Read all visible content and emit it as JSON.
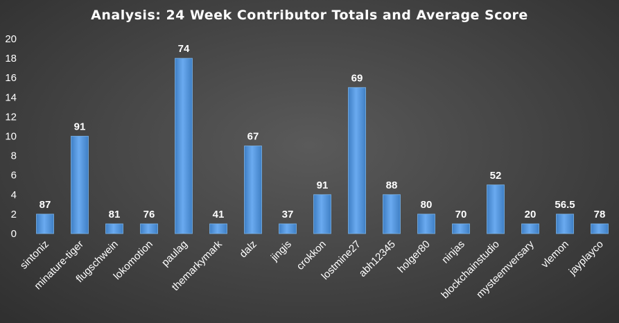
{
  "chart_data": {
    "type": "bar",
    "title": "Analysis: 24 Week Contributor Totals and Average Score",
    "xlabel": "",
    "ylabel": "",
    "ylim": [
      0,
      20
    ],
    "yticks": [
      0,
      2,
      4,
      6,
      8,
      10,
      12,
      14,
      16,
      18,
      20
    ],
    "grid": false,
    "legend": "none",
    "categories": [
      "sintoniz",
      "minature-tiger",
      "flugschwein",
      "lokomotion",
      "paulag",
      "themarkymark",
      "dalz",
      "jingis",
      "crokkon",
      "lostmine27",
      "abh12345",
      "holger80",
      "ninjas",
      "blockchainstudio",
      "mysteemversary",
      "vlemon",
      "jayplayco"
    ],
    "values": [
      2,
      10,
      1,
      1,
      18,
      1,
      9,
      1,
      4,
      15,
      4,
      2,
      1,
      5,
      1,
      2,
      1
    ],
    "data_labels": [
      "87",
      "91",
      "81",
      "76",
      "74",
      "41",
      "67",
      "37",
      "91",
      "69",
      "88",
      "80",
      "70",
      "52",
      "20",
      "56.5",
      "78"
    ],
    "bar_color": "#5b9bd5"
  }
}
